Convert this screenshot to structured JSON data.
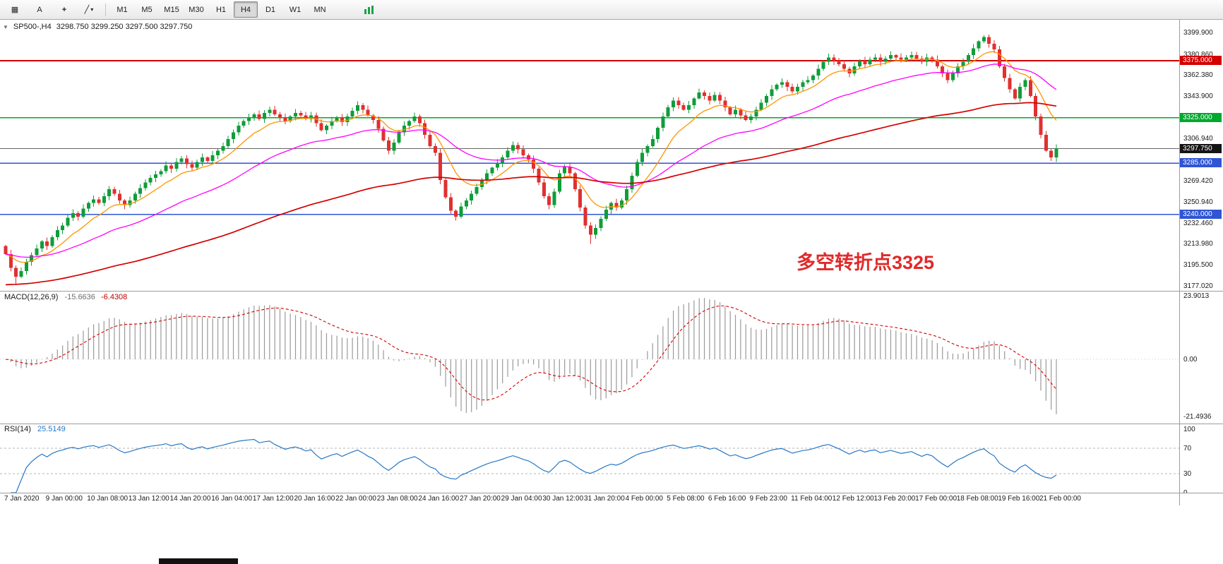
{
  "icons": {
    "collapse": "▼",
    "grid": "▦",
    "text_tool": "A",
    "crosshair": "+",
    "trendline": "╱",
    "chevron": "▾"
  },
  "toolbar": {
    "timeframes": [
      "M1",
      "M5",
      "M15",
      "M30",
      "H1",
      "H4",
      "D1",
      "W1",
      "MN"
    ],
    "active_timeframe": "H4"
  },
  "chart": {
    "symbol_line": {
      "symbol": "SP500-,H4",
      "ohlc": "3298.750 3299.250 3297.500 3297.750"
    },
    "annotation": {
      "text": "多空转折点3325",
      "color": "#e02a2a"
    },
    "scale_labels": [
      {
        "label": "3399.900",
        "value": 3399.9
      },
      {
        "label": "3380.860",
        "value": 3380.86
      },
      {
        "label": "3362.380",
        "value": 3362.38
      },
      {
        "label": "3343.900",
        "value": 3343.9
      },
      {
        "label": "3306.940",
        "value": 3306.94
      },
      {
        "label": "3269.420",
        "value": 3269.42
      },
      {
        "label": "3250.940",
        "value": 3250.94
      },
      {
        "label": "3232.460",
        "value": 3232.46
      },
      {
        "label": "3213.980",
        "value": 3213.98
      },
      {
        "label": "3195.500",
        "value": 3195.5
      },
      {
        "label": "3177.020",
        "value": 3177.02
      }
    ],
    "levels": [
      {
        "price": 3375.0,
        "label": "3375.000",
        "color": "#d40000",
        "width": 2
      },
      {
        "price": 3325.0,
        "label": "3325.000",
        "color": "#00a82d",
        "width": 1.6
      },
      {
        "price": 3285.0,
        "label": "3285.000",
        "color": "#2f55d4",
        "width": 1.6
      },
      {
        "price": 3240.0,
        "label": "3240.000",
        "color": "#2f55d4",
        "width": 1.6
      }
    ],
    "current": {
      "label": "3297.750",
      "price": 3297.75,
      "line_color": "#666666",
      "tag_bg": "#141414"
    }
  },
  "macd": {
    "name": "MACD(12,26,9)",
    "main_value": "-15.6636",
    "signal_value": "-6.4308",
    "scale": [
      {
        "label": "23.9013",
        "value": 23.9013
      },
      {
        "label": "0.00",
        "value": 0
      },
      {
        "label": "-21.4936",
        "value": -21.4936
      }
    ]
  },
  "rsi": {
    "name": "RSI(14)",
    "value": "25.5149",
    "scale": [
      {
        "label": "100",
        "value": 100
      },
      {
        "label": "70",
        "value": 70
      },
      {
        "label": "30",
        "value": 30
      },
      {
        "label": "0",
        "value": 0
      }
    ]
  },
  "chart_data": {
    "type": "candlestick",
    "title": "SP500- H4 candlestick chart with MACD(12,26,9) and RSI(14)",
    "symbol": "SP500-",
    "timeframe": "H4",
    "y_range": [
      3177.02,
      3399.9
    ],
    "first_open": 3212,
    "closes": [
      3205,
      3193,
      3185,
      3190,
      3198,
      3204,
      3210,
      3216,
      3212,
      3220,
      3226,
      3230,
      3237,
      3241,
      3238,
      3245,
      3250,
      3253,
      3250,
      3256,
      3262,
      3258,
      3252,
      3248,
      3252,
      3258,
      3263,
      3268,
      3272,
      3275,
      3278,
      3283,
      3280,
      3286,
      3289,
      3284,
      3281,
      3286,
      3290,
      3287,
      3292,
      3296,
      3300,
      3306,
      3312,
      3318,
      3322,
      3325,
      3328,
      3324,
      3329,
      3332,
      3328,
      3325,
      3322,
      3326,
      3329,
      3327,
      3324,
      3327,
      3320,
      3314,
      3318,
      3322,
      3325,
      3321,
      3326,
      3331,
      3336,
      3332,
      3327,
      3323,
      3315,
      3305,
      3296,
      3303,
      3312,
      3318,
      3322,
      3326,
      3320,
      3310,
      3300,
      3294,
      3270,
      3255,
      3243,
      3238,
      3247,
      3252,
      3258,
      3264,
      3270,
      3276,
      3281,
      3285,
      3290,
      3296,
      3301,
      3297,
      3292,
      3288,
      3280,
      3268,
      3256,
      3248,
      3260,
      3276,
      3282,
      3276,
      3262,
      3246,
      3230,
      3222,
      3228,
      3236,
      3244,
      3250,
      3246,
      3252,
      3262,
      3274,
      3286,
      3294,
      3300,
      3306,
      3316,
      3326,
      3334,
      3340,
      3336,
      3332,
      3336,
      3342,
      3347,
      3344,
      3340,
      3345,
      3340,
      3334,
      3328,
      3332,
      3327,
      3323,
      3326,
      3332,
      3338,
      3344,
      3350,
      3354,
      3356,
      3352,
      3348,
      3352,
      3356,
      3358,
      3362,
      3368,
      3374,
      3378,
      3375,
      3372,
      3368,
      3364,
      3370,
      3375,
      3372,
      3376,
      3378,
      3374,
      3377,
      3380,
      3378,
      3376,
      3378,
      3380,
      3377,
      3374,
      3378,
      3376,
      3370,
      3364,
      3358,
      3364,
      3370,
      3374,
      3380,
      3386,
      3392,
      3396,
      3390,
      3385,
      3370,
      3360,
      3350,
      3342,
      3352,
      3358,
      3344,
      3326,
      3310,
      3296,
      3290,
      3297.75
    ],
    "wick_overrides": {
      "2": {
        "l": 3177.5
      },
      "113": {
        "l": 3214
      },
      "189": {
        "h": 3397.5
      },
      "203": {
        "l": 3286
      }
    },
    "colors": {
      "up": "#0f9d3a",
      "down": "#e03030",
      "ma_fast": "#ff9500",
      "ma_mid": "#ff00ff",
      "ma_slow": "#d40000",
      "macd_hist": "#9a9a9a",
      "macd_signal": "#d40000",
      "rsi": "#2778c4"
    },
    "time_labels": [
      "7 Jan 2020",
      "9 Jan 00:00",
      "10 Jan 08:00",
      "13 Jan 12:00",
      "14 Jan 20:00",
      "16 Jan 04:00",
      "17 Jan 12:00",
      "20 Jan 16:00",
      "22 Jan 00:00",
      "23 Jan 08:00",
      "24 Jan 16:00",
      "27 Jan 20:00",
      "29 Jan 04:00",
      "30 Jan 12:00",
      "31 Jan 20:00",
      "4 Feb 00:00",
      "5 Feb 08:00",
      "6 Feb 16:00",
      "9 Feb 23:00",
      "11 Feb 04:00",
      "12 Feb 12:00",
      "13 Feb 20:00",
      "17 Feb 00:00",
      "18 Feb 08:00",
      "19 Feb 16:00",
      "21 Feb 00:00"
    ]
  }
}
